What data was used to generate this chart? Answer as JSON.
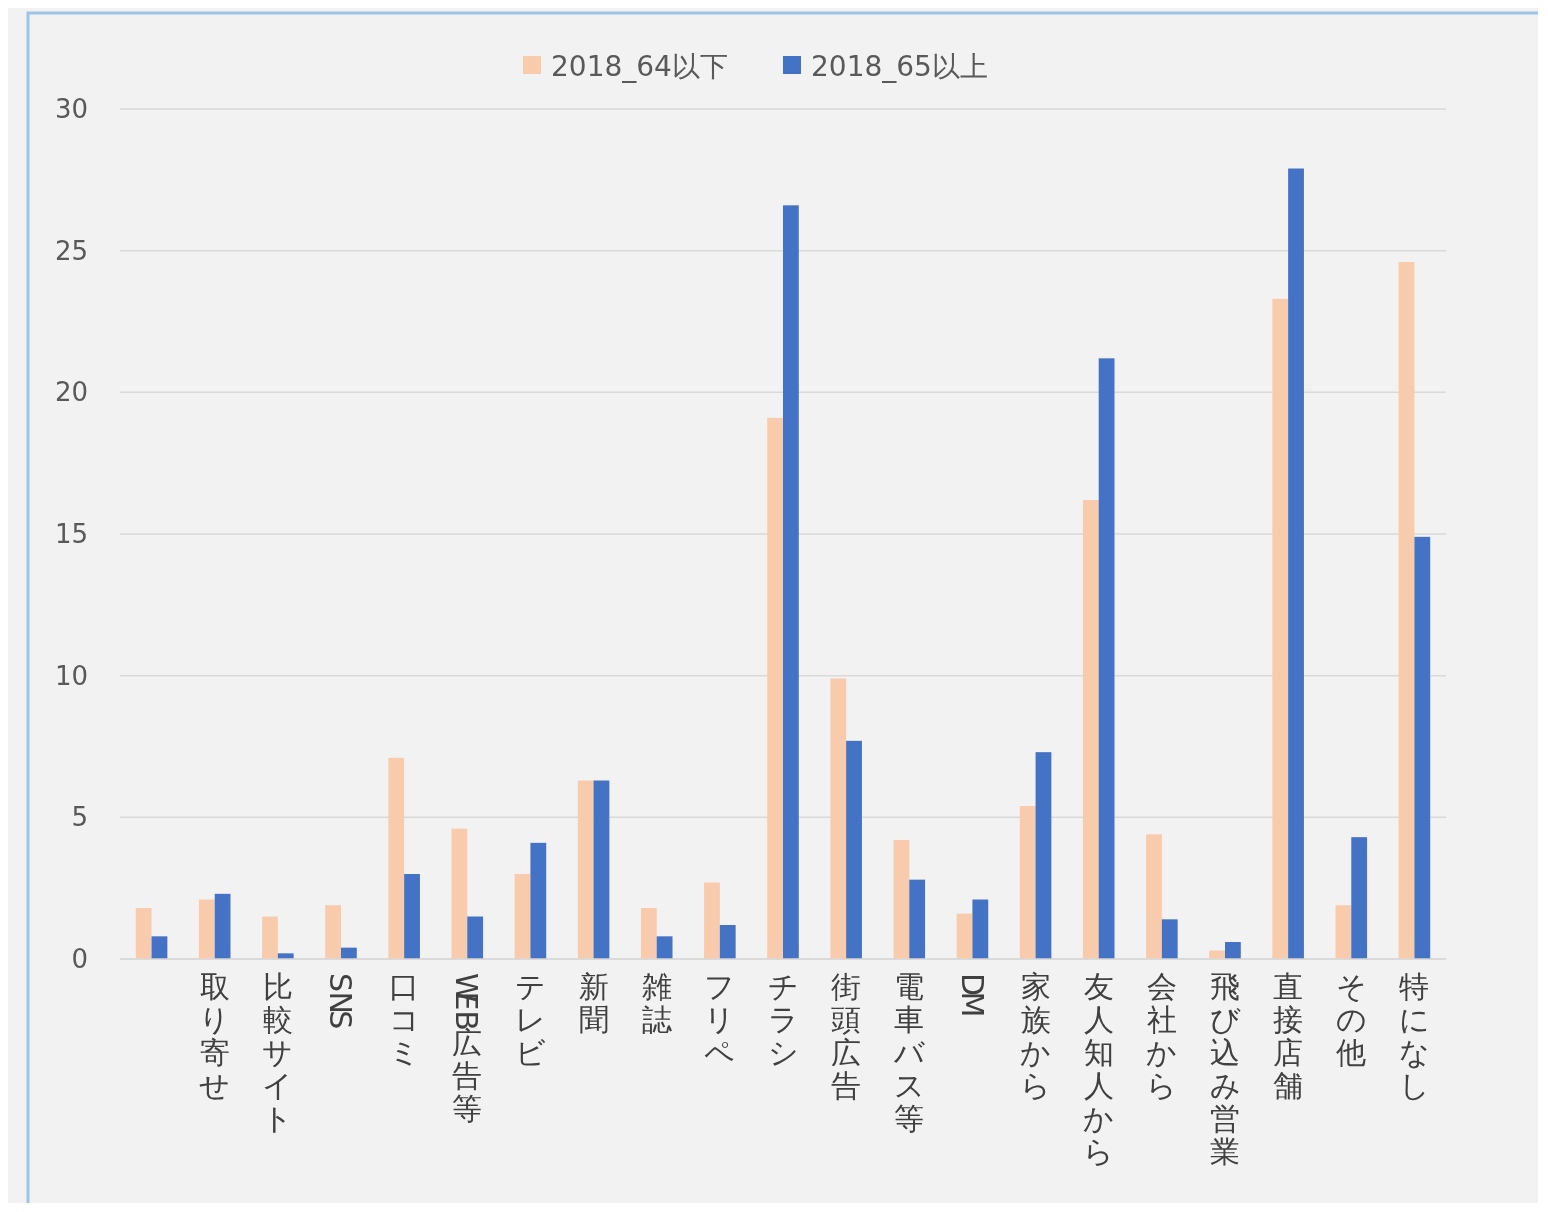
{
  "chart_data": {
    "type": "bar",
    "categories": [
      null,
      "取り寄せ",
      "比較サイト",
      "SNS",
      "口コミ",
      "WEB広告等",
      "テレビ",
      "新聞",
      "雑誌",
      "フリペ",
      "チラシ",
      "街頭広告",
      "電車バス等",
      "DM",
      "家族から",
      "友人知人から",
      "会社から",
      "飛び込み営業",
      "直接店舗",
      "その他",
      "特になし"
    ],
    "series": [
      {
        "name": "2018_64以下",
        "color": "#f8cbad",
        "values": [
          1.8,
          2.1,
          1.5,
          1.9,
          7.1,
          4.6,
          3.0,
          6.3,
          1.8,
          2.7,
          19.1,
          9.9,
          4.2,
          1.6,
          5.4,
          16.2,
          4.4,
          0.3,
          23.3,
          1.9,
          24.6
        ]
      },
      {
        "name": "2018_65以上",
        "color": "#4472c4",
        "values": [
          0.8,
          2.3,
          0.2,
          0.4,
          3.0,
          1.5,
          4.1,
          6.3,
          0.8,
          1.2,
          26.6,
          7.7,
          2.8,
          2.1,
          7.3,
          21.2,
          1.4,
          0.6,
          27.9,
          4.3,
          14.9
        ]
      }
    ],
    "ylim": [
      0,
      30
    ],
    "yticks": [
      0,
      5,
      10,
      15,
      20,
      25,
      30
    ],
    "grid": "y",
    "legend": "top"
  }
}
